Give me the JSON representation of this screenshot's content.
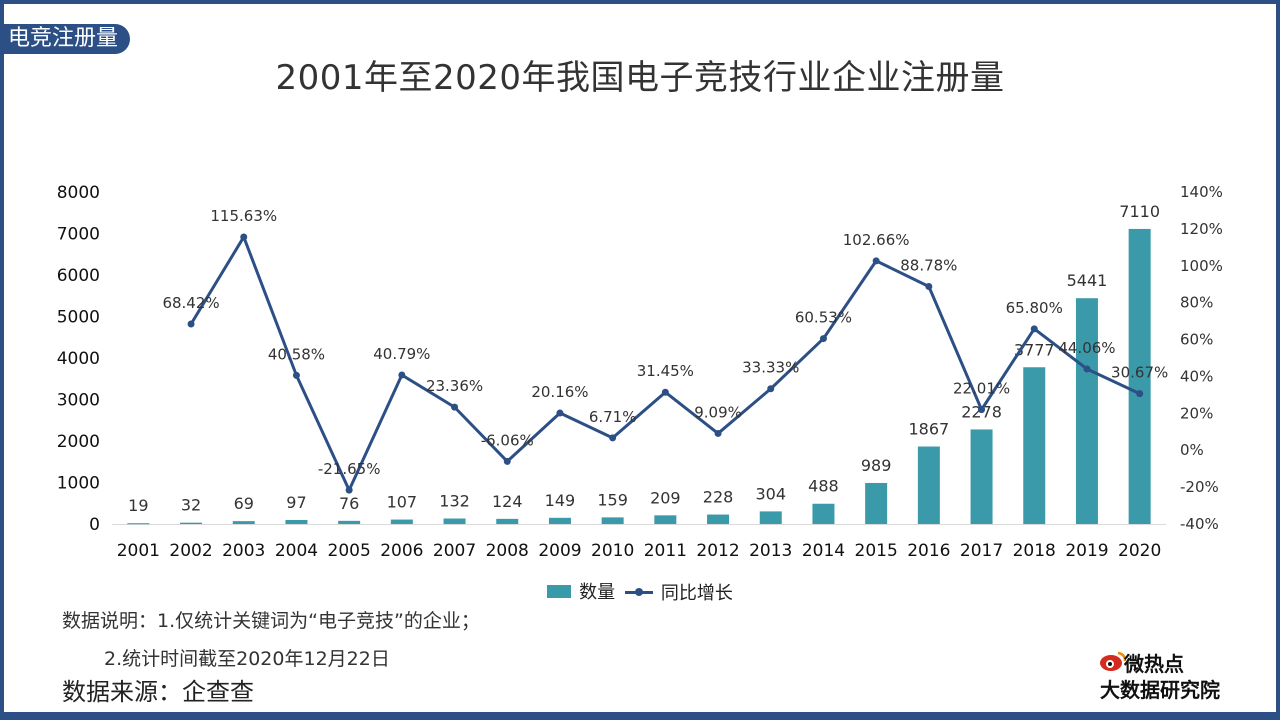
{
  "corner_tag": "电竞注册量",
  "title": "2001年至2020年我国电子竞技行业企业注册量",
  "legend": {
    "bar": "数量",
    "line": "同比增长"
  },
  "notes": {
    "line1": "数据说明：1.仅统计关键词为“电子竞技”的企业；",
    "line2": "2.统计时间截至2020年12月22日"
  },
  "source": "数据来源：企查查",
  "logo": {
    "top": "微热点",
    "bottom": "大数据研究院"
  },
  "colors": {
    "bar": "#3a9aa9",
    "line": "#2c4f86",
    "frame": "#2c4f86"
  },
  "chart_data": {
    "type": "bar",
    "categories": [
      "2001",
      "2002",
      "2003",
      "2004",
      "2005",
      "2006",
      "2007",
      "2008",
      "2009",
      "2010",
      "2011",
      "2012",
      "2013",
      "2014",
      "2015",
      "2016",
      "2017",
      "2018",
      "2019",
      "2020"
    ],
    "series": [
      {
        "name": "数量",
        "type": "bar",
        "axis": "left",
        "values": [
          19,
          32,
          69,
          97,
          76,
          107,
          132,
          124,
          149,
          159,
          209,
          228,
          304,
          488,
          989,
          1867,
          2278,
          3777,
          5441,
          7110
        ]
      },
      {
        "name": "同比增长",
        "type": "line",
        "axis": "right",
        "values": [
          null,
          68.42,
          115.63,
          40.58,
          -21.65,
          40.79,
          23.36,
          -6.06,
          20.16,
          6.71,
          31.45,
          9.09,
          33.33,
          60.53,
          102.66,
          88.78,
          22.01,
          65.8,
          44.06,
          30.67
        ],
        "labels": [
          "",
          "68.42%",
          "115.63%",
          "40.58%",
          "-21.65%",
          "40.79%",
          "23.36%",
          "-6.06%",
          "20.16%",
          "6.71%",
          "31.45%",
          "9.09%",
          "33.33%",
          "60.53%",
          "102.66%",
          "88.78%",
          "22.01%",
          "65.80%",
          "44.06%",
          "30.67%"
        ]
      }
    ],
    "y_left": {
      "ylim": [
        0,
        8000
      ],
      "ticks": [
        "0",
        "1000",
        "2000",
        "3000",
        "4000",
        "5000",
        "6000",
        "7000",
        "8000"
      ]
    },
    "y_right": {
      "ylim": [
        -40,
        140
      ],
      "ticks": [
        "-40%",
        "-20%",
        "0%",
        "20%",
        "40%",
        "60%",
        "80%",
        "100%",
        "120%",
        "140%"
      ]
    },
    "grid": false,
    "legend_position": "bottom"
  }
}
